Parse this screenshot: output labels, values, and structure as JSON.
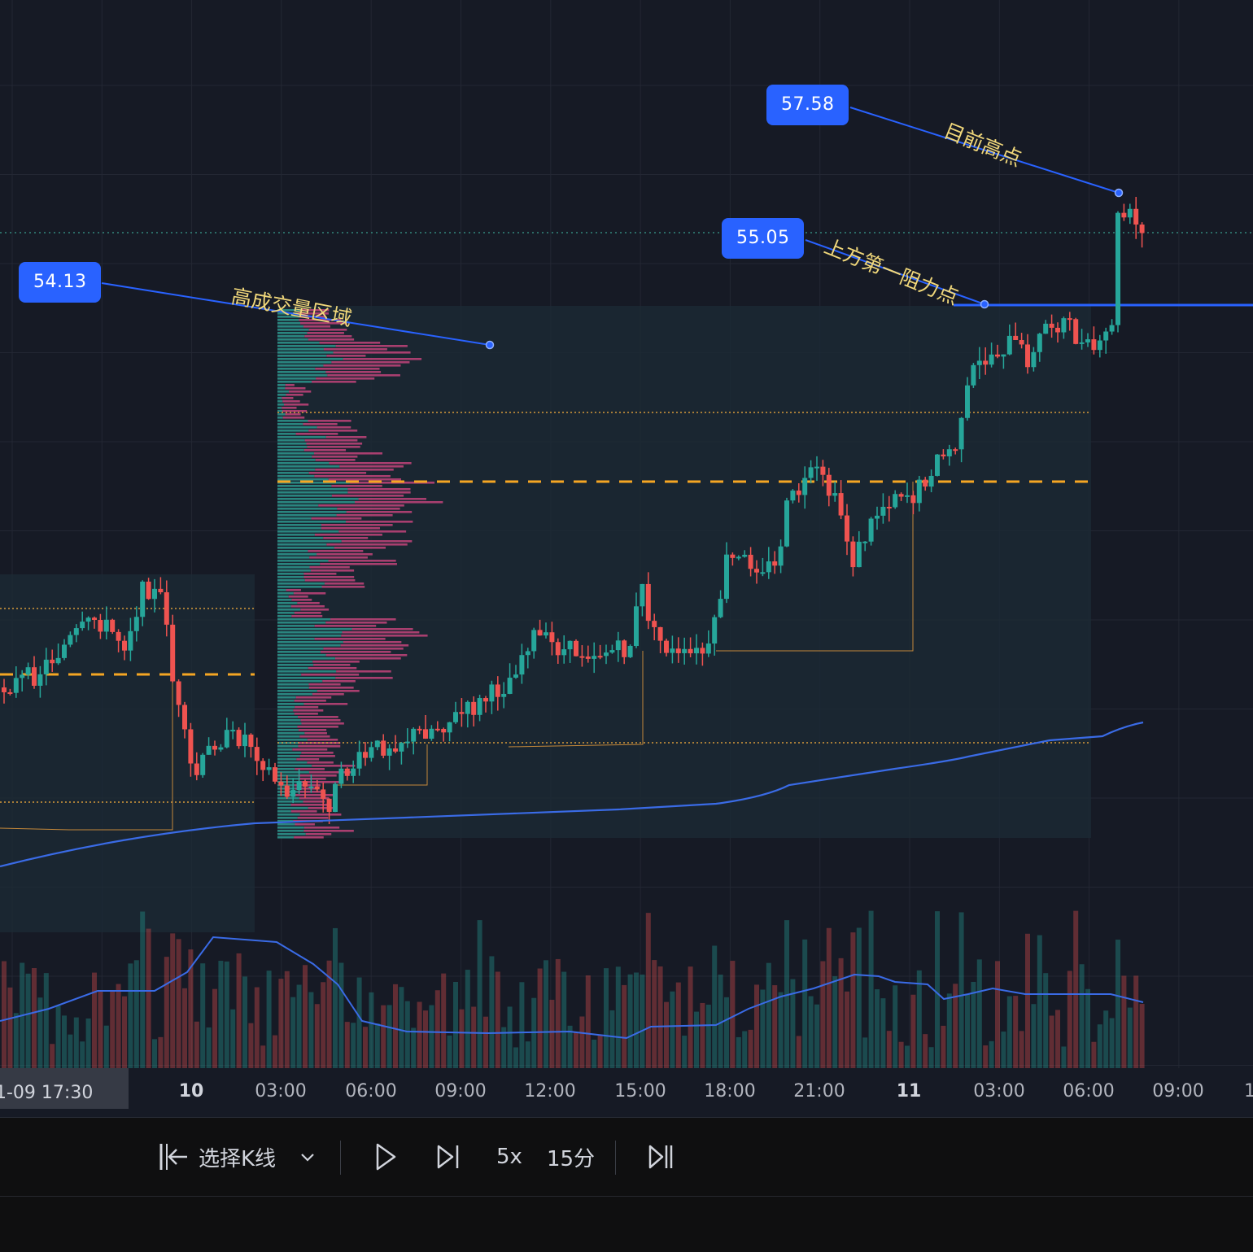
{
  "price_tags": [
    {
      "id": "high",
      "label": "57.58"
    },
    {
      "id": "resistance",
      "label": "55.05"
    },
    {
      "id": "volume-zone",
      "label": "54.13"
    }
  ],
  "annotations": {
    "high": "目前高点",
    "resistance": "上方第一阻力点",
    "volume_zone": "高成交量区域"
  },
  "time_axis": {
    "crosshair_label": "1-09   17:30",
    "ticks": [
      {
        "label": "10",
        "bold": true
      },
      {
        "label": "03:00",
        "bold": false
      },
      {
        "label": "06:00",
        "bold": false
      },
      {
        "label": "09:00",
        "bold": false
      },
      {
        "label": "12:00",
        "bold": false
      },
      {
        "label": "15:00",
        "bold": false
      },
      {
        "label": "18:00",
        "bold": false
      },
      {
        "label": "21:00",
        "bold": false
      },
      {
        "label": "11",
        "bold": true
      },
      {
        "label": "03:00",
        "bold": false
      },
      {
        "label": "06:00",
        "bold": false
      },
      {
        "label": "09:00",
        "bold": false
      },
      {
        "label": "1",
        "bold": false
      }
    ]
  },
  "toolbar": {
    "select_bar_label": "选择K线",
    "speed_label": "5x",
    "interval_label": "15分"
  },
  "icons": {
    "select_bar": "jump-to-bar-icon",
    "dropdown": "chevron-down-icon",
    "play": "play-icon",
    "step_forward": "step-forward-icon",
    "go_to_realtime": "go-to-realtime-icon"
  },
  "colors": {
    "background": "#161a25",
    "up": "#26a69a",
    "down": "#ef5350",
    "accent": "#2962ff",
    "poc": "#f5a623",
    "annotation": "#f0d77a"
  }
}
